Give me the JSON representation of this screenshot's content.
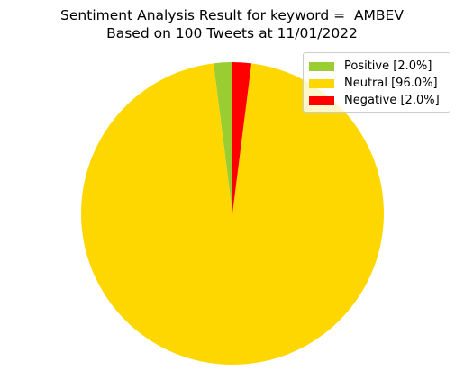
{
  "chart_data": {
    "type": "pie",
    "title": [
      "Sentiment Analysis Result for keyword =  AMBEV",
      "Based on 100 Tweets at 11/01/2022"
    ],
    "categories": [
      "Positive",
      "Neutral",
      "Negative"
    ],
    "values": [
      2.0,
      96.0,
      2.0
    ],
    "colors": [
      "#9acd32",
      "#ffd700",
      "#ff0000"
    ],
    "legend_labels": [
      "Positive [2.0%]",
      "Neutral [96.0%]",
      "Negative [2.0%]"
    ],
    "legend_position": "top-right",
    "start_angle_deg": 90,
    "direction": "counterclockwise"
  }
}
